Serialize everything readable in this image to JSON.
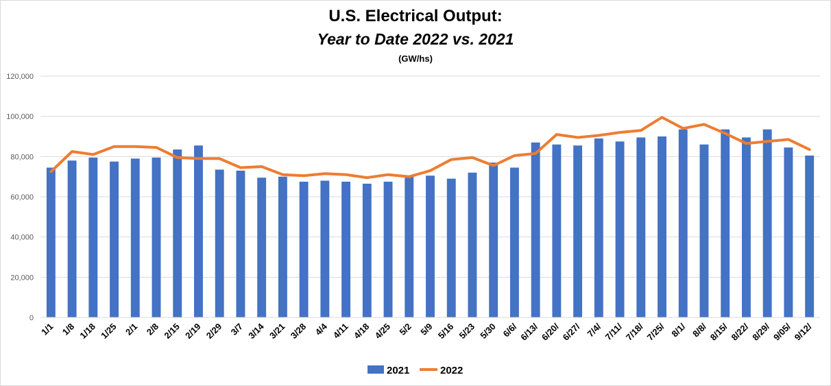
{
  "chart_data": {
    "type": "bar",
    "title": "U.S. Electrical Output:",
    "subtitle": "Year to Date 2022 vs. 2021",
    "units": "(GW/hs)",
    "categories": [
      "1/1",
      "1/8",
      "1/18",
      "1/25",
      "2/1",
      "2/8",
      "2/15",
      "2/19",
      "2/29",
      "3/7",
      "3/14",
      "3/21",
      "3/28",
      "4/4",
      "4/11",
      "4/18",
      "4/25",
      "5/2",
      "5/9",
      "5/16",
      "5/23",
      "5/30",
      "6/6/",
      "6/13/",
      "6/20/",
      "6/27/",
      "7/4/",
      "7/11/",
      "7/18/",
      "7/25/",
      "8/1/",
      "8/8/",
      "8/15/",
      "8/22/",
      "8/29/",
      "9/05/",
      "9/12/"
    ],
    "series": [
      {
        "name": "2021",
        "type": "bar",
        "color": "#4472C4",
        "values": [
          74500,
          78000,
          79500,
          77500,
          79000,
          79500,
          83500,
          85500,
          73500,
          73000,
          69500,
          70000,
          67500,
          68000,
          67500,
          66500,
          67500,
          70000,
          70500,
          69000,
          72000,
          77000,
          74500,
          87000,
          86000,
          85500,
          89000,
          87500,
          89500,
          90000,
          93500,
          86000,
          93500,
          89500,
          93500,
          84500,
          80500
        ]
      },
      {
        "name": "2022",
        "type": "line",
        "color": "#ED7D31",
        "values": [
          72500,
          82500,
          81000,
          85000,
          85000,
          84500,
          79500,
          79000,
          79000,
          74500,
          75000,
          71000,
          70500,
          71500,
          71000,
          69500,
          71000,
          70000,
          73000,
          78500,
          79500,
          75500,
          80500,
          81500,
          91000,
          89500,
          90500,
          92000,
          93000,
          99500,
          94000,
          96000,
          91500,
          86500,
          87500,
          88500,
          83500
        ]
      }
    ],
    "ylim": [
      0,
      120000
    ],
    "yticks": [
      "0",
      "20,000",
      "40,000",
      "60,000",
      "80,000",
      "100,000",
      "120,000"
    ],
    "ytick_values": [
      0,
      20000,
      40000,
      60000,
      80000,
      100000,
      120000
    ],
    "grid": true,
    "legend_position": "bottom",
    "gridline_color": "#d9d9d9"
  }
}
